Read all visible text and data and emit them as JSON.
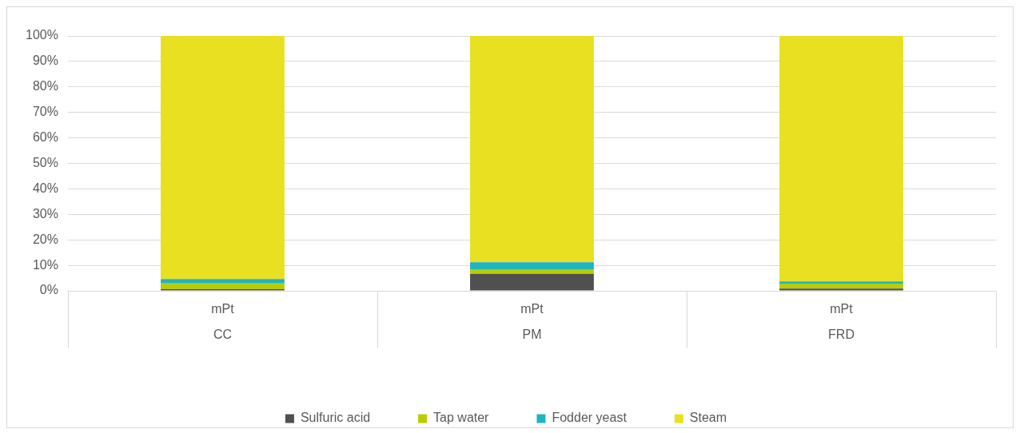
{
  "chart_data": {
    "type": "bar",
    "stacked": true,
    "categories": [
      "mPt",
      "mPt",
      "mPt"
    ],
    "annotations": [
      "CC",
      "PM",
      "FRD"
    ],
    "series": [
      {
        "name": "Sulfuric acid",
        "color": "#505050",
        "values": [
          0.6,
          6.7,
          0.9
        ]
      },
      {
        "name": "Tap water",
        "color": "#b9cc00",
        "values": [
          2.3,
          1.5,
          1.9
        ]
      },
      {
        "name": "Fodder yeast",
        "color": "#1fb5c0",
        "values": [
          1.7,
          3.0,
          0.9
        ]
      },
      {
        "name": "Steam",
        "color": "#e8e020",
        "values": [
          95.4,
          88.8,
          96.3
        ]
      }
    ],
    "ylim": [
      0,
      100
    ],
    "yticks": [
      {
        "value": 0,
        "label": "0%"
      },
      {
        "value": 10,
        "label": "10%"
      },
      {
        "value": 20,
        "label": "20%"
      },
      {
        "value": 30,
        "label": "30%"
      },
      {
        "value": 40,
        "label": "40%"
      },
      {
        "value": 50,
        "label": "50%"
      },
      {
        "value": 60,
        "label": "60%"
      },
      {
        "value": 70,
        "label": "70%"
      },
      {
        "value": 80,
        "label": "80%"
      },
      {
        "value": 90,
        "label": "90%"
      },
      {
        "value": 100,
        "label": "100%"
      }
    ],
    "grid": "y",
    "legend": "bottom"
  }
}
